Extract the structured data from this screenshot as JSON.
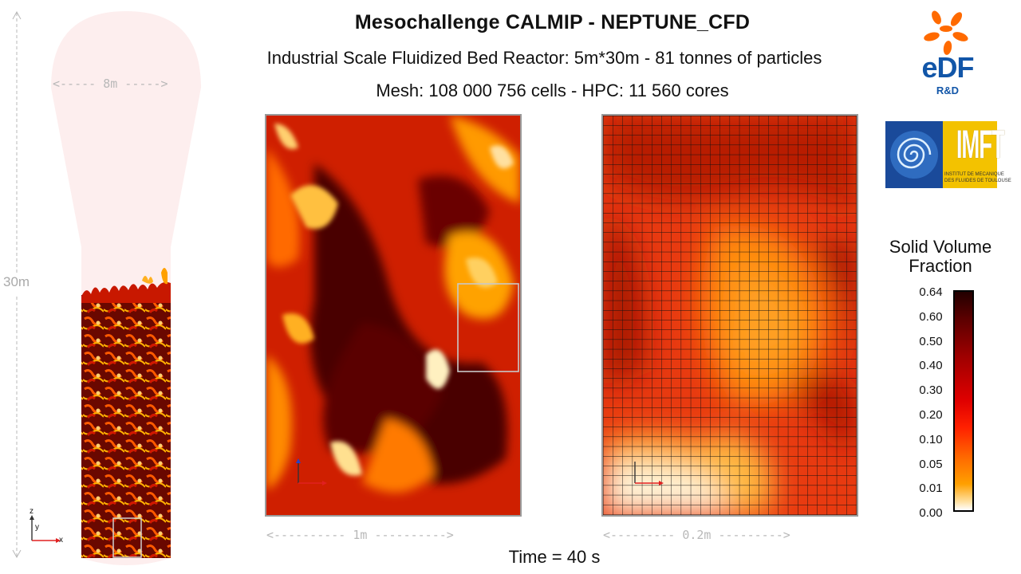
{
  "header": {
    "title": "Mesochallenge CALMIP  -  NEPTUNE_CFD",
    "subtitle": "Industrial Scale Fluidized Bed Reactor: 5m*30m - 81 tonnes of particles",
    "mesh_line": "Mesh: 108 000 756 cells  -  HPC: 11 560 cores"
  },
  "reactor": {
    "height_label": "30m",
    "width_label": "<----- 8m ----->"
  },
  "zoom1": {
    "scale_label": "<---------- 1m ---------->"
  },
  "zoom2": {
    "scale_label": "<--------- 0.2m --------->"
  },
  "time_label": "Time = 40 s",
  "axes": {
    "z": "z",
    "y": "y",
    "x": "x"
  },
  "logos": {
    "edf_text": "eDF",
    "edf_sub": "R&D",
    "imft_text": "IMFT",
    "imft_sub1": "INSTITUT DE MECANIQUE",
    "imft_sub2": "DES FLUIDES DE TOULOUSE"
  },
  "colorbar": {
    "title_line1": "Solid Volume",
    "title_line2": "Fraction",
    "ticks": [
      "0.64",
      "0.60",
      "0.50",
      "0.40",
      "0.30",
      "0.20",
      "0.10",
      "0.05",
      "0.01",
      "0.00"
    ]
  },
  "colors": {
    "accent_dark": "#3a0000",
    "hot": "#ff1a00",
    "warm": "#ffa500",
    "light": "#fff6e0"
  }
}
